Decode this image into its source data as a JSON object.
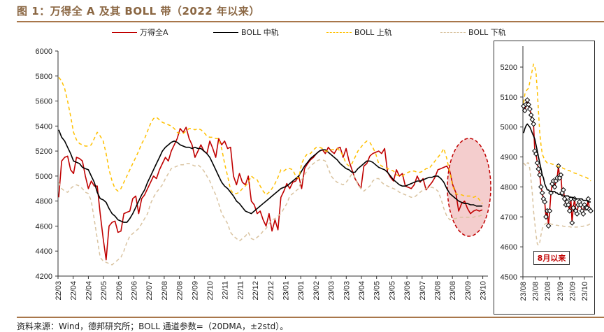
{
  "header": {
    "title": "图 1：万得全 A 及其 BOLL 带（2022 年以来）"
  },
  "footer": {
    "source": "资料来源：Wind，德邦研究所；BOLL 通道参数=（20DMA，±2std）。"
  },
  "legend": [
    {
      "label": "万得全A",
      "color": "#c00000",
      "style": "solid"
    },
    {
      "label": "BOLL 中轨",
      "color": "#000000",
      "style": "solid"
    },
    {
      "label": "BOLL 上轨",
      "color": "#ffc000",
      "style": "dashed"
    },
    {
      "label": "BOLL 下轨",
      "color": "#d9c3a0",
      "style": "dashed"
    }
  ],
  "colors": {
    "index": "#c00000",
    "mid": "#000000",
    "upper": "#ffc000",
    "lower": "#d9c3a0",
    "highlight_fill": "#f2c4c4",
    "highlight_stroke": "#c00000"
  },
  "chart_data": [
    {
      "type": "line",
      "title": "万得全 A 及其 BOLL 带（2022 年以来）",
      "xlabel": "",
      "ylabel": "",
      "ylim": [
        4200,
        6000
      ],
      "yticks": [
        4200,
        4400,
        4600,
        4800,
        5000,
        5200,
        5400,
        5600,
        5800,
        6000
      ],
      "grid": false,
      "legend_position": "top",
      "x_tick_labels": [
        "22/03",
        "22/04",
        "22/04",
        "22/05",
        "22/06",
        "22/06",
        "22/07",
        "22/08",
        "22/08",
        "22/09",
        "22/10",
        "22/11",
        "22/11",
        "22/12",
        "22/12",
        "23/01",
        "23/01",
        "23/02",
        "23/03",
        "23/03",
        "23/04",
        "23/05",
        "23/05",
        "23/06",
        "23/07",
        "23/08",
        "23/08",
        "23/09",
        "23/10"
      ],
      "annotation": "highlight ellipse around 23/08 – 23/10 (8月以来)",
      "series": [
        {
          "name": "万得全A",
          "values": [
            4830,
            5120,
            5150,
            5160,
            5050,
            5020,
            5150,
            5140,
            5120,
            5000,
            4900,
            4960,
            4920,
            4920,
            4700,
            4500,
            4330,
            4600,
            4630,
            4640,
            4550,
            4560,
            4700,
            4710,
            4720,
            4820,
            4840,
            4700,
            4820,
            4850,
            4900,
            4950,
            5000,
            4980,
            5050,
            5100,
            5150,
            5120,
            5200,
            5250,
            5300,
            5380,
            5350,
            5390,
            5300,
            5250,
            5150,
            5200,
            5250,
            5200,
            5180,
            5280,
            5220,
            5150,
            5300,
            5250,
            5280,
            5220,
            5230,
            5000,
            4930,
            5020,
            4950,
            4930,
            5000,
            4800,
            4770,
            4700,
            4720,
            4650,
            4600,
            4700,
            4560,
            4650,
            4570,
            4830,
            4880,
            4940,
            4900,
            4950,
            4960,
            5000,
            4900,
            5060,
            5100,
            5130,
            5150,
            5180,
            5200,
            5210,
            5180,
            5230,
            5200,
            5180,
            5220,
            5230,
            5150,
            5220,
            5120,
            5050,
            4980,
            4940,
            4900,
            5080,
            5100,
            5160,
            5180,
            5190,
            5200,
            5180,
            5220,
            5030,
            4990,
            4960,
            5050,
            5000,
            5020,
            4920,
            4910,
            4900,
            4930,
            5000,
            4950,
            4980,
            4890,
            4920,
            4950,
            4990,
            5050,
            5060,
            5070,
            5080,
            5040,
            4930,
            4870,
            4720,
            4780,
            4800,
            4740,
            4700,
            4720,
            4730,
            4720,
            4730
          ]
        },
        {
          "name": "BOLL 中轨",
          "values": [
            5370,
            5310,
            5280,
            5230,
            5180,
            5120,
            5110,
            5100,
            5070,
            5060,
            5050,
            5000,
            4950,
            4870,
            4820,
            4810,
            4790,
            4740,
            4700,
            4680,
            4650,
            4640,
            4630,
            4630,
            4660,
            4700,
            4750,
            4800,
            4850,
            4890,
            4950,
            5000,
            5050,
            5100,
            5150,
            5200,
            5230,
            5250,
            5270,
            5280,
            5270,
            5250,
            5240,
            5230,
            5230,
            5220,
            5230,
            5220,
            5220,
            5200,
            5180,
            5150,
            5100,
            5050,
            5000,
            4950,
            4920,
            4900,
            4870,
            4840,
            4800,
            4780,
            4750,
            4720,
            4710,
            4700,
            4720,
            4740,
            4760,
            4780,
            4800,
            4820,
            4840,
            4860,
            4880,
            4900,
            4910,
            4920,
            4940,
            4960,
            4980,
            5000,
            5040,
            5080,
            5110,
            5140,
            5160,
            5180,
            5200,
            5210,
            5210,
            5190,
            5170,
            5150,
            5130,
            5100,
            5080,
            5060,
            5050,
            5030,
            5030,
            5060,
            5080,
            5100,
            5120,
            5120,
            5110,
            5090,
            5070,
            5060,
            5050,
            5030,
            5000,
            4970,
            4950,
            4930,
            4920,
            4920,
            4930,
            4940,
            4950,
            4960,
            4960,
            4970,
            4980,
            4990,
            4990,
            5000,
            5000,
            4980,
            4950,
            4900,
            4860,
            4840,
            4820,
            4800,
            4790,
            4780,
            4780,
            4770,
            4770,
            4760,
            4760,
            4760
          ]
        },
        {
          "name": "BOLL 上轨",
          "values": [
            5790,
            5760,
            5700,
            5600,
            5480,
            5350,
            5290,
            5260,
            5250,
            5240,
            5240,
            5250,
            5300,
            5350,
            5320,
            5280,
            5180,
            5050,
            4960,
            4900,
            4880,
            4900,
            4950,
            5000,
            5050,
            5100,
            5150,
            5200,
            5260,
            5300,
            5360,
            5420,
            5460,
            5470,
            5450,
            5430,
            5420,
            5410,
            5400,
            5380,
            5350,
            5340,
            5340,
            5360,
            5380,
            5380,
            5370,
            5380,
            5370,
            5350,
            5320,
            5310,
            5310,
            5300,
            5300,
            5220,
            5100,
            5000,
            4890,
            4860,
            4860,
            4870,
            4900,
            4920,
            4950,
            5000,
            4980,
            4970,
            4920,
            4880,
            4850,
            4870,
            4900,
            4940,
            4990,
            5050,
            5040,
            5060,
            5060,
            5050,
            5000,
            4980,
            5100,
            5150,
            5180,
            5180,
            5210,
            5230,
            5230,
            5220,
            5200,
            5200,
            5210,
            5210,
            5220,
            5200,
            5160,
            5100,
            5080,
            5100,
            5150,
            5200,
            5230,
            5260,
            5280,
            5270,
            5230,
            5180,
            5100,
            5080,
            5070,
            5060,
            5050,
            5040,
            5010,
            5000,
            5000,
            5020,
            5030,
            5040,
            5040,
            5030,
            5030,
            5040,
            5060,
            5060,
            5090,
            5120,
            5150,
            5180,
            5220,
            5140,
            5030,
            4920,
            4860,
            4850,
            4850,
            4840,
            4840,
            4840,
            4830,
            4840,
            4810,
            4780
          ]
        },
        {
          "name": "BOLL 下轨",
          "values": [
            4950,
            4900,
            4880,
            4870,
            4900,
            4920,
            4930,
            4920,
            4900,
            4870,
            4860,
            4800,
            4650,
            4500,
            4350,
            4320,
            4310,
            4300,
            4290,
            4310,
            4330,
            4350,
            4400,
            4470,
            4520,
            4540,
            4560,
            4580,
            4620,
            4660,
            4700,
            4780,
            4830,
            4870,
            4900,
            4930,
            4980,
            5020,
            5060,
            5070,
            5080,
            5090,
            5090,
            5100,
            5100,
            5090,
            5080,
            5090,
            5070,
            5040,
            5000,
            4960,
            4900,
            4850,
            4780,
            4700,
            4660,
            4620,
            4550,
            4520,
            4500,
            4480,
            4500,
            4520,
            4550,
            4500,
            4490,
            4510,
            4530,
            4560,
            4580,
            4620,
            4650,
            4660,
            4680,
            4700,
            4740,
            4780,
            4840,
            4860,
            4880,
            4900,
            4970,
            5010,
            5050,
            5080,
            5100,
            5120,
            5130,
            5130,
            5120,
            5060,
            5000,
            4970,
            4950,
            4940,
            4930,
            4950,
            4980,
            5020,
            4990,
            4930,
            4900,
            4880,
            4900,
            4920,
            4960,
            4980,
            4980,
            4950,
            4930,
            4920,
            4910,
            4900,
            4890,
            4870,
            4860,
            4850,
            4840,
            4830,
            4830,
            4850,
            4870,
            4890,
            4900,
            4910,
            4910,
            4900,
            4880,
            4820,
            4740,
            4680,
            4650,
            4660,
            4660,
            4670,
            4670,
            4670,
            4670,
            4670,
            4670,
            4680,
            4680,
            4690
          ]
        }
      ]
    },
    {
      "type": "line",
      "title": "8月以来",
      "xlabel": "",
      "ylabel": "",
      "ylim": [
        4500,
        5250
      ],
      "yticks": [
        4500,
        4600,
        4700,
        4800,
        4900,
        5000,
        5100,
        5200
      ],
      "grid": false,
      "x_tick_labels": [
        "23/08",
        "23/08",
        "23/08",
        "23/09",
        "23/09",
        "23/10"
      ],
      "annotation_box": "8月以来",
      "series": [
        {
          "name": "万得全A",
          "markers": true,
          "values": [
            5070,
            5055,
            5075,
            5090,
            5075,
            5060,
            5040,
            5025,
            5010,
            4920,
            4910,
            4880,
            4860,
            4840,
            4800,
            4780,
            4760,
            4750,
            4700,
            4720,
            4670,
            4720,
            4780,
            4810,
            4820,
            4800,
            4820,
            4830,
            4870,
            4830,
            4840,
            4780,
            4790,
            4760,
            4740,
            4750,
            4740,
            4720,
            4760,
            4680,
            4730,
            4760,
            4720,
            4710,
            4740,
            4750,
            4740,
            4720,
            4710,
            4740,
            4730,
            4730,
            4760,
            4725,
            4720
          ]
        },
        {
          "name": "BOLL 中轨",
          "values": [
            4980,
            4995,
            5005,
            5010,
            5005,
            5000,
            4990,
            4980,
            4970,
            4960,
            4940,
            4920,
            4900,
            4880,
            4860,
            4840,
            4830,
            4810,
            4800,
            4790,
            4790,
            4785,
            4785,
            4785,
            4785,
            4785,
            4780,
            4780,
            4775,
            4775,
            4775,
            4770,
            4770,
            4770,
            4770,
            4770,
            4770,
            4765,
            4765,
            4765,
            4765,
            4760,
            4760,
            4760,
            4760,
            4760,
            4760,
            4760,
            4755,
            4755,
            4755,
            4755,
            4750,
            4750,
            4750
          ]
        },
        {
          "name": "BOLL 上轨",
          "values": [
            5080,
            5110,
            5120,
            5125,
            5130,
            5150,
            5170,
            5190,
            5210,
            5200,
            5180,
            5120,
            5050,
            4980,
            4940,
            4910,
            4900,
            4890,
            4885,
            4880,
            4880,
            4880,
            4878,
            4876,
            4875,
            4874,
            4872,
            4870,
            4868,
            4866,
            4865,
            4864,
            4862,
            4860,
            4858,
            4856,
            4855,
            4854,
            4852,
            4850,
            4848,
            4846,
            4845,
            4844,
            4842,
            4840,
            4838,
            4836,
            4835,
            4834,
            4832,
            4830,
            4828,
            4826,
            4820
          ]
        },
        {
          "name": "BOLL 下轨",
          "values": [
            4880,
            4875,
            4870,
            4880,
            4880,
            4860,
            4820,
            4780,
            4720,
            4680,
            4640,
            4610,
            4605,
            4615,
            4640,
            4660,
            4670,
            4675,
            4678,
            4680,
            4680,
            4678,
            4676,
            4675,
            4674,
            4673,
            4672,
            4672,
            4671,
            4670,
            4670,
            4670,
            4669,
            4668,
            4668,
            4667,
            4667,
            4667,
            4666,
            4666,
            4666,
            4666,
            4666,
            4666,
            4667,
            4667,
            4668,
            4668,
            4669,
            4670,
            4671,
            4672,
            4673,
            4675,
            4680
          ]
        }
      ]
    }
  ]
}
